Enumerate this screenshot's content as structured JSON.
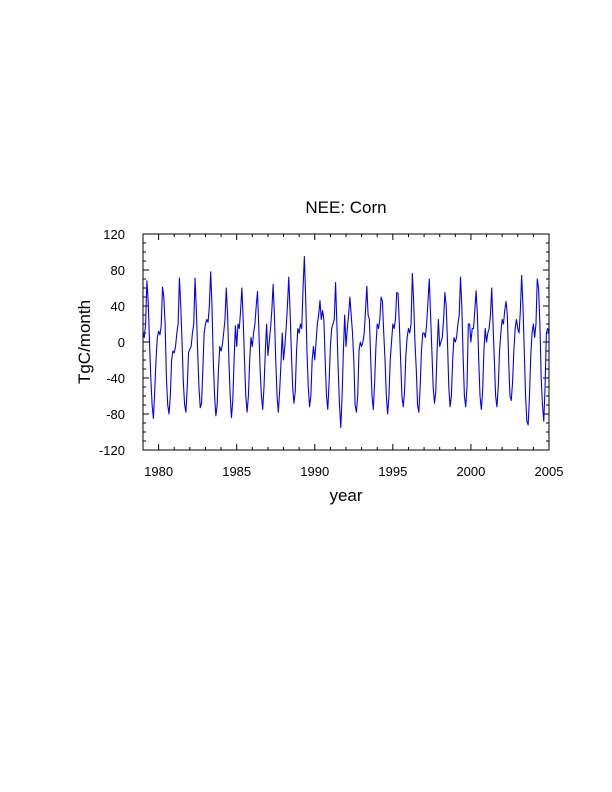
{
  "chart_data": {
    "type": "line",
    "title": "NEE: Corn",
    "xlabel": "year",
    "ylabel": "TgC/month",
    "xlim": [
      1979,
      2005
    ],
    "ylim": [
      -120,
      120
    ],
    "xticks": [
      1980,
      1985,
      1990,
      1995,
      2000,
      2005
    ],
    "yticks": [
      -120,
      -80,
      -40,
      0,
      40,
      80,
      120
    ],
    "x_start_year": 1979,
    "x_step_year": 0.08333,
    "series": [
      {
        "color": "#0000ff",
        "values": [
          10,
          5,
          20,
          68,
          45,
          0,
          -40,
          -70,
          -85,
          -55,
          -20,
          5,
          12,
          8,
          18,
          61,
          50,
          20,
          -40,
          -70,
          -80,
          -60,
          -20,
          -10,
          -12,
          -5,
          10,
          20,
          71,
          40,
          0,
          -45,
          -70,
          -78,
          -50,
          -12,
          -8,
          -5,
          10,
          20,
          71,
          35,
          -10,
          -50,
          -73,
          -68,
          -30,
          10,
          20,
          25,
          22,
          40,
          78,
          40,
          -20,
          -60,
          -82,
          -70,
          -30,
          -5,
          -10,
          -3,
          10,
          25,
          60,
          30,
          -20,
          -60,
          -84,
          -65,
          -20,
          18,
          -5,
          20,
          15,
          35,
          60,
          25,
          -20,
          -60,
          -78,
          -60,
          -20,
          5,
          -5,
          10,
          20,
          40,
          56,
          15,
          -30,
          -60,
          -75,
          -50,
          -10,
          20,
          -15,
          0,
          15,
          35,
          64,
          30,
          -20,
          -60,
          -78,
          -55,
          -25,
          10,
          -20,
          -5,
          15,
          40,
          72,
          35,
          -10,
          -50,
          -68,
          -55,
          -10,
          15,
          10,
          20,
          15,
          60,
          95,
          50,
          -10,
          -50,
          -72,
          -60,
          -20,
          -5,
          -20,
          0,
          20,
          30,
          46,
          25,
          35,
          25,
          -20,
          -60,
          -75,
          -45,
          -5,
          15,
          20,
          25,
          66,
          20,
          -30,
          -70,
          -95,
          -60,
          -10,
          30,
          -5,
          15,
          30,
          50,
          30,
          10,
          -20,
          -70,
          -78,
          -60,
          -10,
          0,
          -5,
          0,
          10,
          35,
          62,
          30,
          25,
          -20,
          -60,
          -75,
          -45,
          -5,
          20,
          15,
          25,
          50,
          45,
          10,
          -20,
          -60,
          -80,
          -60,
          -20,
          0,
          20,
          15,
          25,
          55,
          54,
          20,
          -20,
          -60,
          -72,
          -55,
          -15,
          5,
          15,
          10,
          20,
          76,
          45,
          0,
          -30,
          -70,
          -78,
          -50,
          -10,
          10,
          10,
          5,
          20,
          45,
          70,
          30,
          -10,
          -50,
          -68,
          -55,
          -10,
          25,
          -5,
          0,
          5,
          25,
          55,
          40,
          0,
          -50,
          -72,
          -60,
          -20,
          5,
          0,
          5,
          20,
          30,
          72,
          40,
          -15,
          -60,
          -72,
          -50,
          20,
          20,
          0,
          15,
          15,
          35,
          57,
          30,
          -20,
          -60,
          -75,
          -55,
          -10,
          15,
          0,
          10,
          15,
          30,
          60,
          20,
          -20,
          -60,
          -72,
          -50,
          -10,
          10,
          25,
          20,
          35,
          45,
          30,
          -20,
          -60,
          -65,
          -45,
          -10,
          15,
          25,
          15,
          10,
          35,
          74,
          40,
          -10,
          -60,
          -88,
          -92,
          -60,
          -15,
          10,
          20,
          5,
          20,
          70,
          60,
          20,
          -40,
          -70,
          -88,
          -50,
          10,
          15,
          10
        ]
      }
    ],
    "grid": false,
    "legend": "none"
  }
}
